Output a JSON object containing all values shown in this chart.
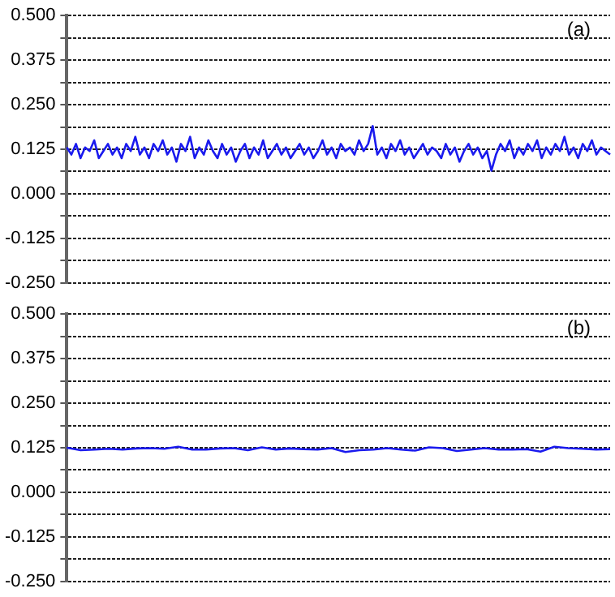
{
  "chart_data": [
    {
      "type": "line",
      "annotations": [
        "(a)"
      ],
      "grid": "y",
      "marker": "none",
      "line_style": "solid",
      "legend": false,
      "tick_labels": "y",
      "categories": [
        null,
        null,
        null,
        null,
        null,
        null,
        null,
        null,
        null,
        null,
        null,
        null,
        null,
        null,
        null,
        null,
        null,
        null,
        null,
        null,
        null,
        null,
        null,
        null,
        null,
        null,
        null,
        null,
        null,
        null,
        null,
        null,
        null,
        null,
        null,
        null,
        null,
        null,
        null,
        null,
        null,
        null,
        null,
        null,
        null,
        null,
        null,
        null,
        null,
        null,
        null,
        null,
        null,
        null,
        null,
        null,
        null,
        null,
        null,
        null,
        null,
        null,
        null,
        null,
        null,
        null,
        null,
        null,
        null,
        null,
        null,
        null,
        null,
        null,
        null,
        null,
        null,
        null,
        null,
        null,
        null,
        null,
        null,
        null,
        null,
        null,
        null,
        null,
        null,
        null,
        null,
        null,
        null,
        null,
        null,
        null,
        null,
        null,
        null,
        null,
        null,
        null,
        null,
        null,
        null,
        null,
        null,
        null,
        null,
        null,
        null,
        null,
        null,
        null,
        null,
        null,
        null,
        null,
        null,
        null
      ],
      "series": [
        {
          "color": "#1a1aee",
          "values": [
            0.13,
            0.11,
            0.14,
            0.1,
            0.13,
            0.12,
            0.15,
            0.1,
            0.12,
            0.14,
            0.11,
            0.13,
            0.1,
            0.14,
            0.12,
            0.16,
            0.11,
            0.13,
            0.1,
            0.14,
            0.12,
            0.15,
            0.11,
            0.13,
            0.09,
            0.14,
            0.12,
            0.16,
            0.1,
            0.13,
            0.11,
            0.15,
            0.12,
            0.1,
            0.14,
            0.11,
            0.13,
            0.09,
            0.12,
            0.14,
            0.1,
            0.13,
            0.11,
            0.15,
            0.1,
            0.12,
            0.14,
            0.11,
            0.13,
            0.1,
            0.12,
            0.14,
            0.11,
            0.13,
            0.1,
            0.12,
            0.15,
            0.11,
            0.13,
            0.1,
            0.14,
            0.12,
            0.13,
            0.11,
            0.15,
            0.12,
            0.14,
            0.19,
            0.11,
            0.13,
            0.1,
            0.14,
            0.12,
            0.15,
            0.11,
            0.13,
            0.1,
            0.12,
            0.14,
            0.11,
            0.13,
            0.12,
            0.1,
            0.14,
            0.11,
            0.13,
            0.09,
            0.12,
            0.14,
            0.11,
            0.13,
            0.1,
            0.12,
            0.065,
            0.11,
            0.14,
            0.12,
            0.15,
            0.1,
            0.13,
            0.11,
            0.14,
            0.12,
            0.15,
            0.1,
            0.13,
            0.11,
            0.14,
            0.12,
            0.16,
            0.11,
            0.13,
            0.1,
            0.14,
            0.12,
            0.15,
            0.11,
            0.13,
            0.12,
            0.11
          ]
        }
      ],
      "ylim": [
        -0.25,
        0.5
      ],
      "yticks": [
        {
          "value": 0.5,
          "label": "0.500"
        },
        {
          "value": 0.4375,
          "label": null
        },
        {
          "value": 0.375,
          "label": "0.375"
        },
        {
          "value": 0.3125,
          "label": null
        },
        {
          "value": 0.25,
          "label": "0.250"
        },
        {
          "value": 0.1875,
          "label": null
        },
        {
          "value": 0.125,
          "label": "0.125"
        },
        {
          "value": 0.0625,
          "label": null
        },
        {
          "value": 0,
          "label": "0.000"
        },
        {
          "value": -0.0625,
          "label": null
        },
        {
          "value": -0.125,
          "label": "-0.125"
        },
        {
          "value": -0.1875,
          "label": null
        },
        {
          "value": -0.25,
          "label": "-0.250"
        }
      ]
    },
    {
      "type": "line",
      "annotations": [
        "(b)"
      ],
      "grid": "y",
      "marker": "none",
      "line_style": "solid",
      "legend": false,
      "tick_labels": "y",
      "categories": [
        null,
        null,
        null,
        null,
        null,
        null,
        null,
        null,
        null,
        null,
        null,
        null,
        null,
        null,
        null,
        null,
        null,
        null,
        null,
        null,
        null,
        null,
        null,
        null,
        null,
        null,
        null,
        null,
        null,
        null,
        null,
        null,
        null,
        null,
        null,
        null,
        null,
        null,
        null,
        null
      ],
      "series": [
        {
          "color": "#1a1aee",
          "values": [
            0.125,
            0.118,
            0.12,
            0.122,
            0.12,
            0.123,
            0.124,
            0.122,
            0.128,
            0.12,
            0.12,
            0.123,
            0.124,
            0.118,
            0.126,
            0.12,
            0.123,
            0.121,
            0.12,
            0.124,
            0.113,
            0.118,
            0.12,
            0.124,
            0.12,
            0.117,
            0.126,
            0.124,
            0.116,
            0.12,
            0.124,
            0.12,
            0.12,
            0.121,
            0.114,
            0.128,
            0.124,
            0.122,
            0.12,
            0.121
          ]
        }
      ],
      "ylim": [
        -0.25,
        0.5
      ],
      "yticks": [
        {
          "value": 0.5,
          "label": "0.500"
        },
        {
          "value": 0.4375,
          "label": null
        },
        {
          "value": 0.375,
          "label": "0.375"
        },
        {
          "value": 0.3125,
          "label": null
        },
        {
          "value": 0.25,
          "label": "0.250"
        },
        {
          "value": 0.1875,
          "label": null
        },
        {
          "value": 0.125,
          "label": "0.125"
        },
        {
          "value": 0.0625,
          "label": null
        },
        {
          "value": 0,
          "label": "0.000"
        },
        {
          "value": -0.0625,
          "label": null
        },
        {
          "value": -0.125,
          "label": "-0.125"
        },
        {
          "value": -0.1875,
          "label": null
        },
        {
          "value": -0.25,
          "label": "-0.250"
        }
      ]
    }
  ]
}
